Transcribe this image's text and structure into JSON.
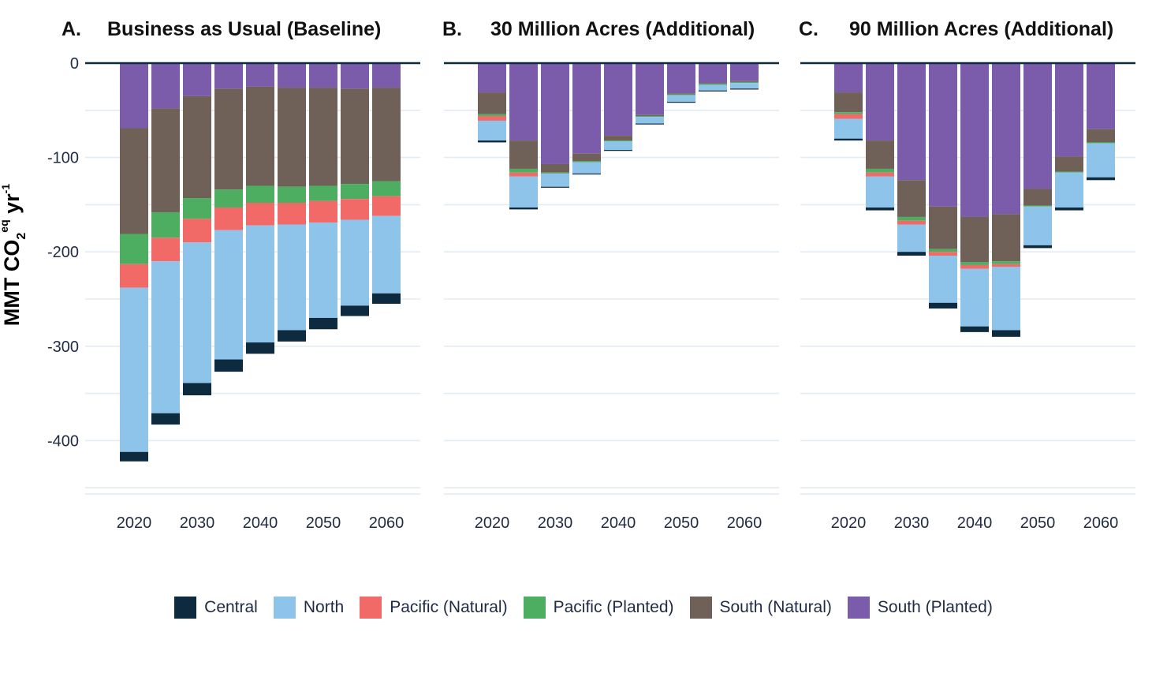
{
  "chart_data": {
    "type": "bar",
    "stacked": true,
    "ylabel": "MMT CO",
    "ylabel_sub": "2",
    "ylabel_sup": "eq",
    "ylabel_rest": " yr",
    "ylabel_rest_sup": "-1",
    "ylim": [
      -450,
      0
    ],
    "yticks": [
      0,
      -100,
      -200,
      -300,
      -400
    ],
    "ytick_labels": [
      "0",
      "-100",
      "-200",
      "-300",
      "-400"
    ],
    "grid": true,
    "legend_position": "bottom",
    "colors": {
      "Central": "#0d2a3e",
      "North": "#8ec3ea",
      "Pacific (Natural)": "#f16a68",
      "Pacific (Planted)": "#4dae62",
      "South (Natural)": "#706158",
      "South (Planted)": "#7a5caa"
    },
    "stack_order": [
      "South (Planted)",
      "South (Natural)",
      "Pacific (Planted)",
      "Pacific (Natural)",
      "North",
      "Central"
    ],
    "legend_order": [
      "Central",
      "North",
      "Pacific (Natural)",
      "Pacific (Planted)",
      "South (Natural)",
      "South (Planted)"
    ],
    "x": [
      2020,
      2025,
      2030,
      2035,
      2040,
      2045,
      2050,
      2055,
      2060
    ],
    "xticks": [
      2020,
      2030,
      2040,
      2050,
      2060
    ],
    "panels": [
      {
        "label": "A.",
        "title": "Business as Usual (Baseline)",
        "series": [
          {
            "name": "South (Planted)",
            "values": [
              -69,
              -48,
              -35,
              -27,
              -25,
              -26,
              -26,
              -27,
              -26
            ]
          },
          {
            "name": "South (Natural)",
            "values": [
              -112,
              -110,
              -108,
              -107,
              -105,
              -105,
              -104,
              -101,
              -99
            ]
          },
          {
            "name": "Pacific (Planted)",
            "values": [
              -32,
              -27,
              -22,
              -19,
              -18,
              -17,
              -16,
              -16,
              -16
            ]
          },
          {
            "name": "Pacific (Natural)",
            "values": [
              -25,
              -25,
              -25,
              -24,
              -24,
              -23,
              -23,
              -22,
              -21
            ]
          },
          {
            "name": "North",
            "values": [
              -174,
              -161,
              -149,
              -137,
              -124,
              -112,
              -101,
              -91,
              -82
            ]
          },
          {
            "name": "Central",
            "values": [
              -10,
              -12,
              -13,
              -13,
              -12,
              -12,
              -12,
              -11,
              -11
            ]
          }
        ]
      },
      {
        "label": "B.",
        "title": "30 Million Acres (Additional)",
        "series": [
          {
            "name": "South (Planted)",
            "values": [
              -31,
              -82,
              -107,
              -96,
              -77,
              -55,
              -32,
              -21,
              -19
            ]
          },
          {
            "name": "South (Natural)",
            "values": [
              -23,
              -30,
              -9,
              -8,
              -5,
              -1,
              -1,
              -1,
              -1
            ]
          },
          {
            "name": "Pacific (Planted)",
            "values": [
              -2,
              -4,
              -1,
              -1,
              -1,
              -1,
              -1,
              -1,
              -1
            ]
          },
          {
            "name": "Pacific (Natural)",
            "values": [
              -5,
              -4,
              0,
              0,
              0,
              0,
              0,
              0,
              0
            ]
          },
          {
            "name": "North",
            "values": [
              -21,
              -33,
              -14,
              -12,
              -9,
              -7,
              -7,
              -6,
              -6
            ]
          },
          {
            "name": "Central",
            "values": [
              -2,
              -2,
              -1,
              -1,
              -1,
              -1,
              -1,
              -1,
              -1
            ]
          }
        ]
      },
      {
        "label": "C.",
        "title": "90 Million Acres (Additional)",
        "series": [
          {
            "name": "South (Planted)",
            "values": [
              -31,
              -82,
              -124,
              -152,
              -163,
              -160,
              -133,
              -99,
              -70
            ]
          },
          {
            "name": "South (Natural)",
            "values": [
              -21,
              -30,
              -39,
              -45,
              -48,
              -50,
              -18,
              -16,
              -14
            ]
          },
          {
            "name": "Pacific (Planted)",
            "values": [
              -2,
              -4,
              -4,
              -3,
              -3,
              -3,
              -1,
              -1,
              -1
            ]
          },
          {
            "name": "Pacific (Natural)",
            "values": [
              -5,
              -4,
              -4,
              -4,
              -4,
              -3,
              0,
              0,
              0
            ]
          },
          {
            "name": "North",
            "values": [
              -21,
              -33,
              -29,
              -50,
              -61,
              -67,
              -41,
              -37,
              -36
            ]
          },
          {
            "name": "Central",
            "values": [
              -2,
              -3,
              -4,
              -6,
              -6,
              -7,
              -3,
              -3,
              -3
            ]
          }
        ]
      }
    ]
  }
}
